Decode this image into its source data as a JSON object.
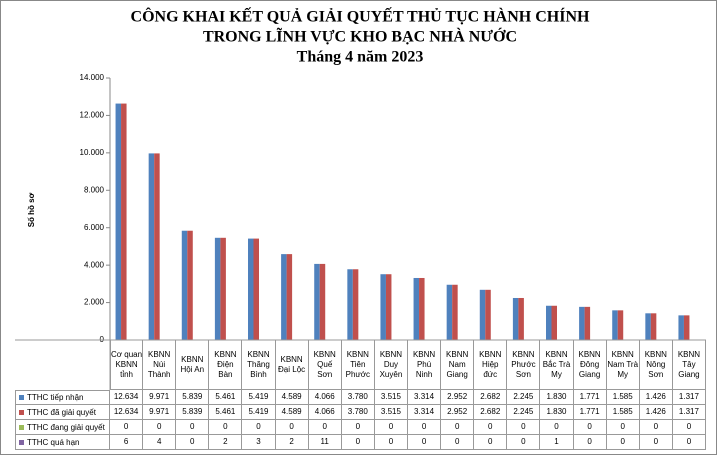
{
  "chart_data": {
    "type": "bar",
    "title": [
      "CÔNG KHAI KẾT QUẢ GIẢI QUYẾT THỦ TỤC HÀNH CHÍNH",
      "TRONG LĨNH VỰC KHO BẠC NHÀ NƯỚC",
      "Tháng 4 năm 2023"
    ],
    "y_label": "Số hồ sơ",
    "categories": [
      "Cơ quan KBNN tỉnh",
      "KBNN Núi Thành",
      "KBNN Hội An",
      "KBNN Điện Bàn",
      "KBNN Thăng Bình",
      "KBNN Đại Lộc",
      "KBNN Quế Sơn",
      "KBNN Tiên Phước",
      "KBNN Duy Xuyên",
      "KBNN Phú Ninh",
      "KBNN Nam Giang",
      "KBNN Hiệp đức",
      "KBNN Phước Sơn",
      "KBNN Bắc Trà My",
      "KBNN Đông Giang",
      "KBNN Nam Trà My",
      "KBNN Nông Sơn",
      "KBNN Tây Giang"
    ],
    "series": [
      {
        "name": "TTHC tiếp nhận",
        "color": "#4f81bd",
        "values": [
          12634,
          9971,
          5839,
          5461,
          5419,
          4589,
          4066,
          3780,
          3515,
          3314,
          2952,
          2682,
          2245,
          1830,
          1771,
          1585,
          1426,
          1317
        ],
        "value_labels": [
          "12.634",
          "9.971",
          "5.839",
          "5.461",
          "5.419",
          "4.589",
          "4.066",
          "3.780",
          "3.515",
          "3.314",
          "2.952",
          "2.682",
          "2.245",
          "1.830",
          "1.771",
          "1.585",
          "1.426",
          "1.317"
        ]
      },
      {
        "name": "TTHC đã giải quyết",
        "color": "#c0504d",
        "values": [
          12634,
          9971,
          5839,
          5461,
          5419,
          4589,
          4066,
          3780,
          3515,
          3314,
          2952,
          2682,
          2245,
          1830,
          1771,
          1585,
          1426,
          1317
        ],
        "value_labels": [
          "12.634",
          "9.971",
          "5.839",
          "5.461",
          "5.419",
          "4.589",
          "4.066",
          "3.780",
          "3.515",
          "3.314",
          "2.952",
          "2.682",
          "2.245",
          "1.830",
          "1.771",
          "1.585",
          "1.426",
          "1.317"
        ]
      },
      {
        "name": "TTHC đang giải quyết",
        "color": "#9bbb59",
        "values": [
          0,
          0,
          0,
          0,
          0,
          0,
          0,
          0,
          0,
          0,
          0,
          0,
          0,
          0,
          0,
          0,
          0,
          0
        ]
      },
      {
        "name": "TTHC quá hạn",
        "color": "#8064a2",
        "values": [
          6,
          4,
          0,
          2,
          3,
          2,
          11,
          0,
          0,
          0,
          0,
          0,
          0,
          1,
          0,
          0,
          0,
          0
        ]
      }
    ],
    "ylim": [
      0,
      14000
    ],
    "yticks": [
      0,
      {
        "value": 2000,
        "label": "2.000"
      },
      {
        "value": 4000,
        "label": "4.000"
      },
      {
        "value": 6000,
        "label": "6.000"
      },
      {
        "value": 8000,
        "label": "8.000"
      },
      {
        "value": 10000,
        "label": "10.000"
      },
      {
        "value": 12000,
        "label": "12.000"
      },
      {
        "value": 14000,
        "label": "14.000"
      }
    ],
    "grid": false
  }
}
